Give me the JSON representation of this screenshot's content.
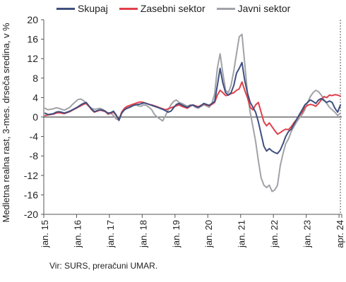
{
  "chart_data": {
    "type": "line",
    "ylabel": "Medletna realna rast, 3-mes. drseča sredina, v %",
    "ylim": [
      -20,
      20
    ],
    "yticks": [
      -20,
      -16,
      -12,
      -8,
      -4,
      0,
      4,
      8,
      12,
      16,
      20
    ],
    "x_start": "jan. 15",
    "x_end": "apr. 24",
    "xticks": [
      "jan. 15",
      "jan. 16",
      "jan. 17",
      "jan. 18",
      "jan. 19",
      "jan. 20",
      "jan. 21",
      "jan. 22",
      "jan. 23",
      "apr. 24"
    ],
    "grid": false,
    "legend_position": "top",
    "series": [
      {
        "name": "Skupaj",
        "color": "#3f4f7f",
        "values": [
          0.8,
          0.5,
          0.6,
          0.7,
          1.0,
          1.1,
          1.0,
          0.8,
          1.0,
          1.2,
          1.5,
          1.8,
          2.1,
          2.5,
          2.8,
          3.0,
          2.3,
          1.6,
          1.1,
          1.3,
          1.5,
          1.4,
          1.2,
          0.8,
          0.9,
          1.2,
          0.4,
          -0.7,
          0.8,
          1.5,
          1.8,
          2.0,
          2.3,
          2.5,
          2.6,
          2.7,
          2.9,
          2.8,
          2.6,
          2.4,
          2.2,
          2.0,
          1.8,
          1.6,
          1.3,
          1.0,
          1.2,
          1.9,
          2.6,
          2.8,
          2.5,
          2.2,
          2.0,
          2.3,
          2.5,
          2.2,
          2.0,
          2.3,
          2.8,
          2.6,
          2.4,
          2.8,
          3.2,
          6.5,
          10.0,
          7.0,
          5.0,
          4.5,
          5.0,
          6.5,
          9.0,
          10.0,
          11.2,
          7.5,
          5.0,
          3.0,
          2.0,
          1.0,
          -1.0,
          -3.5,
          -6.0,
          -7.0,
          -6.5,
          -7.0,
          -7.3,
          -7.5,
          -6.8,
          -5.5,
          -4.0,
          -3.0,
          -2.5,
          -1.5,
          -0.5,
          0.5,
          1.5,
          2.5,
          3.0,
          3.5,
          3.2,
          2.8,
          3.5,
          3.8,
          3.4,
          3.0,
          3.3,
          3.0,
          1.8,
          1.0,
          2.5
        ]
      },
      {
        "name": "Zasebni sektor",
        "color": "#e0404a",
        "values": [
          0.3,
          0.4,
          0.5,
          0.6,
          0.8,
          0.9,
          0.8,
          0.7,
          0.9,
          1.1,
          1.4,
          1.7,
          2.0,
          2.3,
          2.6,
          2.8,
          2.2,
          1.5,
          1.0,
          1.2,
          1.4,
          1.3,
          1.1,
          0.7,
          0.8,
          1.0,
          0.3,
          -0.5,
          1.0,
          1.8,
          2.2,
          2.4,
          2.6,
          2.8,
          3.0,
          3.1,
          3.0,
          2.8,
          2.6,
          2.5,
          2.3,
          2.1,
          1.9,
          1.7,
          1.5,
          1.7,
          1.9,
          2.1,
          2.3,
          2.5,
          2.2,
          2.0,
          1.8,
          2.2,
          2.5,
          2.3,
          2.1,
          2.4,
          2.7,
          2.5,
          2.3,
          2.6,
          3.0,
          4.5,
          5.5,
          5.0,
          4.4,
          4.5,
          4.8,
          5.0,
          5.5,
          5.8,
          7.2,
          5.5,
          4.0,
          2.0,
          1.5,
          2.5,
          3.0,
          1.0,
          -1.0,
          -1.8,
          -1.2,
          -2.0,
          -2.8,
          -3.5,
          -3.2,
          -2.8,
          -2.5,
          -2.6,
          -2.0,
          -1.2,
          -0.5,
          0.3,
          1.0,
          2.0,
          2.4,
          2.6,
          2.5,
          2.2,
          2.8,
          3.5,
          4.2,
          4.0,
          4.5,
          4.4,
          4.6,
          4.5,
          4.3
        ]
      },
      {
        "name": "Javni sektor",
        "color": "#a0a2a8",
        "values": [
          1.8,
          1.5,
          1.6,
          1.7,
          1.9,
          1.8,
          1.6,
          1.4,
          1.7,
          2.0,
          2.6,
          3.1,
          3.6,
          3.7,
          3.4,
          2.8,
          2.2,
          1.8,
          1.6,
          1.7,
          1.8,
          1.6,
          1.2,
          0.5,
          0.8,
          0.3,
          -0.4,
          -0.6,
          0.8,
          1.5,
          2.0,
          2.2,
          2.6,
          2.6,
          2.3,
          2.2,
          2.5,
          2.4,
          2.0,
          1.5,
          0.5,
          0.0,
          -0.4,
          -0.8,
          0.3,
          1.5,
          2.5,
          3.2,
          3.5,
          3.0,
          2.8,
          2.5,
          2.2,
          2.5,
          2.4,
          2.0,
          1.8,
          2.2,
          2.5,
          2.3,
          2.0,
          2.8,
          4.8,
          10.0,
          13.0,
          9.0,
          5.5,
          5.0,
          6.5,
          9.5,
          13.0,
          16.5,
          17.0,
          11.0,
          5.0,
          1.0,
          -2.0,
          -5.0,
          -9.0,
          -12.5,
          -14.0,
          -14.5,
          -14.0,
          -15.3,
          -15.0,
          -14.0,
          -10.0,
          -7.5,
          -5.5,
          -4.5,
          -3.0,
          -2.0,
          -1.0,
          -0.2,
          0.5,
          1.5,
          3.0,
          4.2,
          5.0,
          5.5,
          5.2,
          4.5,
          3.5,
          2.8,
          2.0,
          1.5,
          1.0,
          0.3,
          0.8
        ]
      }
    ]
  },
  "source": "Vir: SURS, preračuni UMAR."
}
